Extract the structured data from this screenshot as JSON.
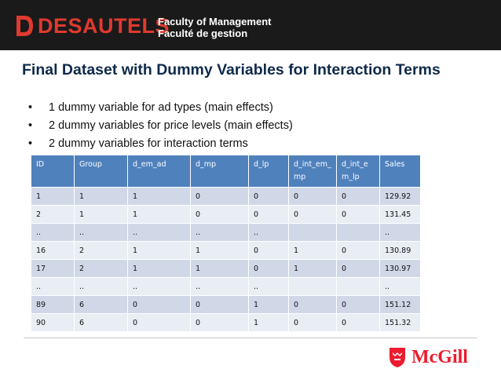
{
  "header": {
    "logo_text": "DESAUTELS",
    "faculty_en": "Faculty of Management",
    "faculty_fr": "Faculté de gestion",
    "background_color": "#1a1a1a",
    "logo_color": "#e03a2e"
  },
  "slide": {
    "title": "Final Dataset with Dummy Variables for Interaction Terms",
    "bullets": [
      "1 dummy variable for ad types (main effects)",
      "2 dummy variables for price levels (main effects)",
      "2 dummy variables for interaction terms"
    ],
    "bullet_symbol": "•"
  },
  "table": {
    "header_color": "#4f81bd",
    "row_color_odd": "#d0d8e8",
    "row_color_even": "#e9edf4",
    "columns": [
      "ID",
      "Group",
      "d_em_ad",
      "d_mp",
      "d_lp",
      "d_int_em_mp",
      "d_int_em_lp",
      "Sales"
    ],
    "rows": [
      [
        "1",
        "1",
        "1",
        "0",
        "0",
        "0",
        "0",
        "129.92"
      ],
      [
        "2",
        "1",
        "1",
        "0",
        "0",
        "0",
        "0",
        "131.45"
      ],
      [
        "..",
        "..",
        "..",
        "..",
        "..",
        "",
        "",
        ".."
      ],
      [
        "16",
        "2",
        "1",
        "1",
        "0",
        "1",
        "0",
        "130.89"
      ],
      [
        "17",
        "2",
        "1",
        "1",
        "0",
        "1",
        "0",
        "130.97"
      ],
      [
        "..",
        "..",
        "..",
        "..",
        "..",
        "",
        "",
        ".."
      ],
      [
        "89",
        "6",
        "0",
        "0",
        "1",
        "0",
        "0",
        "151.12"
      ],
      [
        "90",
        "6",
        "0",
        "0",
        "1",
        "0",
        "0",
        "151.32"
      ]
    ]
  },
  "footer": {
    "logo_text": "McGill",
    "logo_color": "#ed1b2f",
    "crest_icon": "mcgill-crest-icon"
  }
}
